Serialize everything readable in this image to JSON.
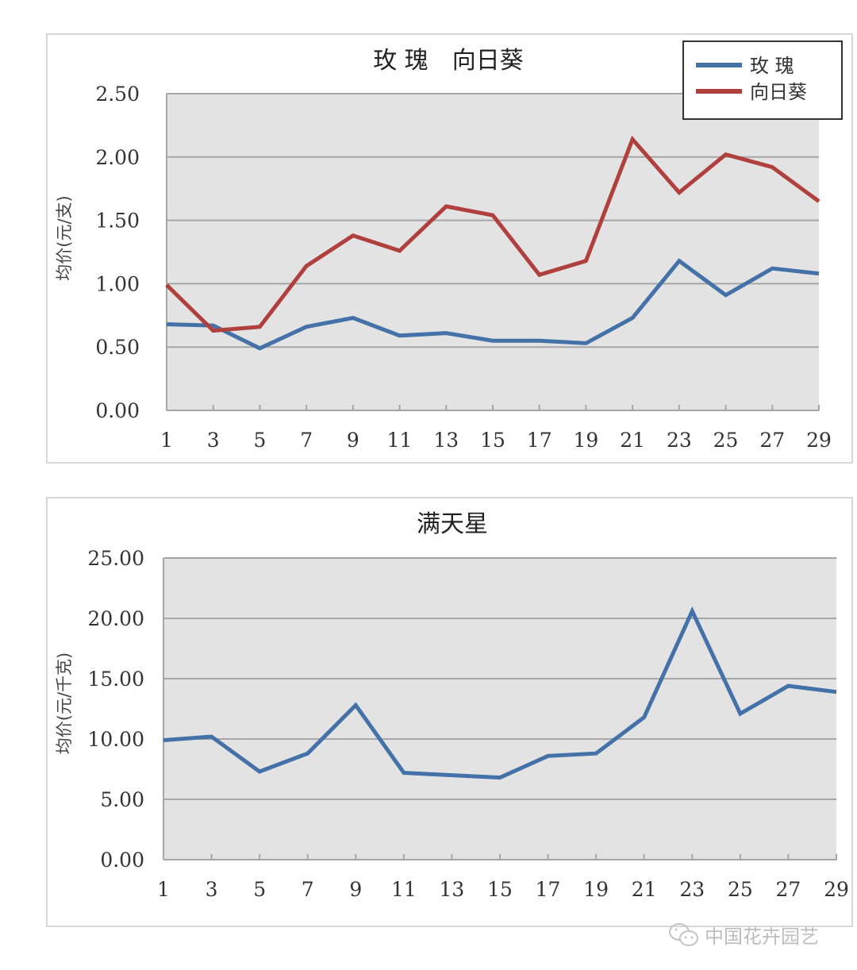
{
  "chart_data": [
    {
      "type": "line",
      "title": "玫 瑰　向日葵",
      "xlabel": "",
      "ylabel": "均价(元/支)",
      "ylim": [
        0,
        2.5
      ],
      "yticks": [
        "0.00",
        "0.50",
        "1.00",
        "1.50",
        "2.00",
        "2.50"
      ],
      "categories": [
        "1",
        "3",
        "5",
        "7",
        "9",
        "11",
        "13",
        "15",
        "17",
        "19",
        "21",
        "23",
        "25",
        "27",
        "29"
      ],
      "grid": true,
      "legend_position": "top-right",
      "series": [
        {
          "name": "玫 瑰",
          "color": "#4472a8",
          "values": [
            0.68,
            0.67,
            0.49,
            0.66,
            0.73,
            0.59,
            0.61,
            0.55,
            0.55,
            0.53,
            0.73,
            1.18,
            0.91,
            1.12,
            1.08
          ]
        },
        {
          "name": "向日葵",
          "color": "#b0403e",
          "values": [
            0.99,
            0.63,
            0.66,
            1.14,
            1.38,
            1.26,
            1.61,
            1.54,
            1.07,
            1.18,
            2.14,
            1.72,
            2.02,
            1.92,
            1.65
          ]
        }
      ]
    },
    {
      "type": "line",
      "title": "满天星",
      "xlabel": "",
      "ylabel": "均价(元/千克)",
      "ylim": [
        0,
        25
      ],
      "yticks": [
        "0.00",
        "5.00",
        "10.00",
        "15.00",
        "20.00",
        "25.00"
      ],
      "categories": [
        "1",
        "3",
        "5",
        "7",
        "9",
        "11",
        "13",
        "15",
        "17",
        "19",
        "21",
        "23",
        "25",
        "27",
        "29"
      ],
      "grid": true,
      "legend_position": "none",
      "series": [
        {
          "name": "满天星",
          "color": "#4472a8",
          "values": [
            9.9,
            10.2,
            7.3,
            8.8,
            12.8,
            7.2,
            7.0,
            6.8,
            8.6,
            8.8,
            11.8,
            20.6,
            12.1,
            14.4,
            13.9
          ]
        }
      ]
    }
  ],
  "watermark": {
    "text": "中国花卉园艺",
    "icon": "wechat-icon"
  }
}
